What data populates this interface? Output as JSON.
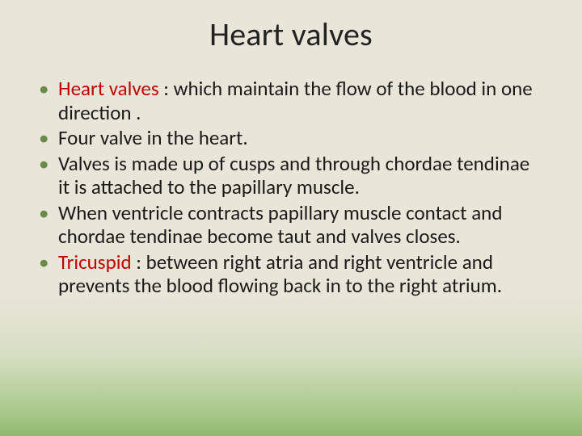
{
  "slide": {
    "background": {
      "gradient_stops": [
        {
          "pct": 0,
          "color": "#e9e5d9"
        },
        {
          "pct": 68,
          "color": "#e9e5d8"
        },
        {
          "pct": 82,
          "color": "#d5dec2"
        },
        {
          "pct": 95,
          "color": "#a7c788"
        },
        {
          "pct": 100,
          "color": "#8fb86e"
        }
      ]
    },
    "title": {
      "text": "Heart valves",
      "fontsize": 40,
      "color": "#222222",
      "align": "center"
    },
    "bullet_style": {
      "marker_color": "#6a8a48",
      "body_fontsize": 25,
      "body_color": "#1a1a1a",
      "term_color": "#c00000",
      "line_height": 1.18
    },
    "bullets": [
      {
        "term": "Heart valves",
        "rest": " : which maintain the flow of the blood in one direction ."
      },
      {
        "term": "",
        "rest": " Four valve in the heart."
      },
      {
        "term": "",
        "rest": "Valves is made up of cusps and through chordae tendinae it is attached to the papillary muscle."
      },
      {
        "term": "",
        "rest": "When ventricle contracts papillary muscle contact and chordae tendinae become taut and valves closes."
      },
      {
        "term": "Tricuspid",
        "rest": " :  between right atria and right ventricle and prevents the blood flowing back in to the right atrium."
      }
    ]
  }
}
